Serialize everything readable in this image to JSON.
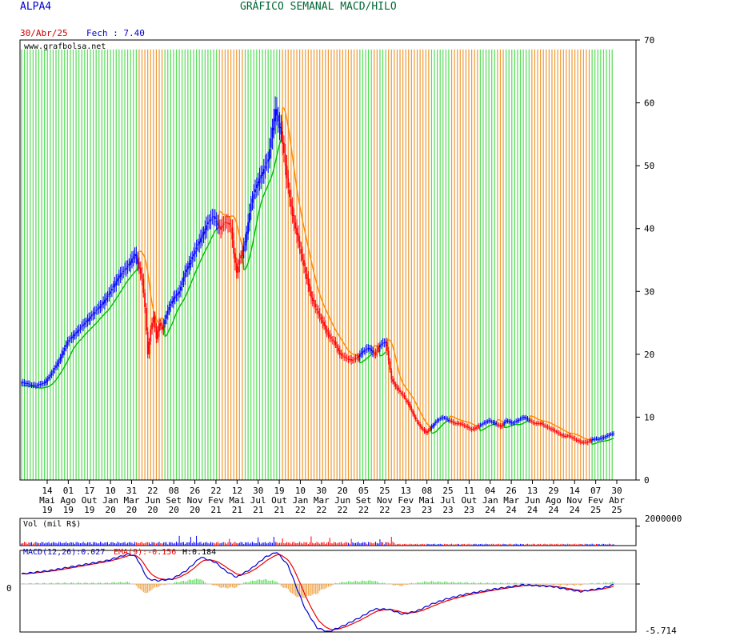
{
  "header": {
    "ticker": "ALPA4",
    "title": "GRÁFICO SEMANAL MACD/HILO",
    "date": "30/Abr/25",
    "close_label": "Fech : 7.40"
  },
  "colors": {
    "up": "#0000ff",
    "down": "#ff0000",
    "hilo_buy": "#00bb00",
    "hilo_sell": "#ff8800",
    "band_green": "#55dd55",
    "band_orange": "#ee9933",
    "macd": "#0000cc",
    "signal": "#ee0000"
  },
  "chart_data": [
    {
      "type": "candlestick",
      "panel": "price",
      "watermark": "www.grafbolsa.net",
      "ylim": [
        0,
        70
      ],
      "yticks": [
        "0",
        "10",
        "20",
        "30",
        "40",
        "50",
        "60",
        "70"
      ],
      "xticks": [
        {
          "day": "14",
          "month": "Mai",
          "year": "19"
        },
        {
          "day": "01",
          "month": "Ago",
          "year": "19"
        },
        {
          "day": "17",
          "month": "Out",
          "year": "19"
        },
        {
          "day": "10",
          "month": "Jan",
          "year": "20"
        },
        {
          "day": "31",
          "month": "Mar",
          "year": "20"
        },
        {
          "day": "22",
          "month": "Jun",
          "year": "20"
        },
        {
          "day": "08",
          "month": "Set",
          "year": "20"
        },
        {
          "day": "26",
          "month": "Nov",
          "year": "20"
        },
        {
          "day": "22",
          "month": "Fev",
          "year": "21"
        },
        {
          "day": "12",
          "month": "Mai",
          "year": "21"
        },
        {
          "day": "30",
          "month": "Jul",
          "year": "21"
        },
        {
          "day": "19",
          "month": "Out",
          "year": "21"
        },
        {
          "day": "10",
          "month": "Jan",
          "year": "22"
        },
        {
          "day": "30",
          "month": "Mar",
          "year": "22"
        },
        {
          "day": "20",
          "month": "Jun",
          "year": "22"
        },
        {
          "day": "05",
          "month": "Set",
          "year": "22"
        },
        {
          "day": "25",
          "month": "Nov",
          "year": "22"
        },
        {
          "day": "13",
          "month": "Fev",
          "year": "23"
        },
        {
          "day": "08",
          "month": "Mai",
          "year": "23"
        },
        {
          "day": "25",
          "month": "Jul",
          "year": "23"
        },
        {
          "day": "11",
          "month": "Out",
          "year": "23"
        },
        {
          "day": "04",
          "month": "Jan",
          "year": "24"
        },
        {
          "day": "26",
          "month": "Mar",
          "year": "24"
        },
        {
          "day": "13",
          "month": "Jun",
          "year": "24"
        },
        {
          "day": "29",
          "month": "Ago",
          "year": "24"
        },
        {
          "day": "14",
          "month": "Nov",
          "year": "24"
        },
        {
          "day": "07",
          "month": "Fev",
          "year": "25"
        },
        {
          "day": "30",
          "month": "Abr",
          "year": "25"
        }
      ],
      "close_path": [
        [
          0,
          15.5
        ],
        [
          10,
          15.0
        ],
        [
          16,
          15.5
        ],
        [
          21,
          17.0
        ],
        [
          26,
          19.0
        ],
        [
          32,
          22.0
        ],
        [
          38,
          23.5
        ],
        [
          44,
          25.0
        ],
        [
          50,
          26.5
        ],
        [
          56,
          28.0
        ],
        [
          62,
          30.0
        ],
        [
          68,
          32.5
        ],
        [
          74,
          34.0
        ],
        [
          79,
          36.0
        ],
        [
          84,
          32.0
        ],
        [
          86,
          27.5
        ],
        [
          88,
          20.0
        ],
        [
          90,
          24.0
        ],
        [
          92,
          26.0
        ],
        [
          94,
          22.5
        ],
        [
          96,
          25.0
        ],
        [
          98,
          24.0
        ],
        [
          102,
          27.0
        ],
        [
          106,
          29.0
        ],
        [
          110,
          30.0
        ],
        [
          114,
          33.0
        ],
        [
          118,
          35.0
        ],
        [
          122,
          37.0
        ],
        [
          126,
          39.0
        ],
        [
          130,
          41.0
        ],
        [
          134,
          42.0
        ],
        [
          138,
          40.0
        ],
        [
          142,
          41.0
        ],
        [
          146,
          40.5
        ],
        [
          148,
          36.0
        ],
        [
          150,
          33.0
        ],
        [
          152,
          35.0
        ],
        [
          156,
          38.0
        ],
        [
          160,
          44.0
        ],
        [
          164,
          47.0
        ],
        [
          168,
          49.0
        ],
        [
          172,
          51.0
        ],
        [
          175,
          56.0
        ],
        [
          177,
          59.0
        ],
        [
          179,
          57.0
        ],
        [
          181,
          55.0
        ],
        [
          183,
          52.0
        ],
        [
          185,
          48.0
        ],
        [
          187,
          45.0
        ],
        [
          189,
          42.0
        ],
        [
          191,
          40.0
        ],
        [
          193,
          38.0
        ],
        [
          196,
          35.0
        ],
        [
          199,
          32.0
        ],
        [
          202,
          29.0
        ],
        [
          206,
          27.0
        ],
        [
          210,
          25.0
        ],
        [
          214,
          23.0
        ],
        [
          218,
          22.0
        ],
        [
          222,
          20.0
        ],
        [
          226,
          19.5
        ],
        [
          230,
          19.0
        ],
        [
          234,
          19.5
        ],
        [
          238,
          20.5
        ],
        [
          242,
          21.0
        ],
        [
          246,
          20.0
        ],
        [
          250,
          21.5
        ],
        [
          254,
          22.0
        ],
        [
          256,
          19.0
        ],
        [
          258,
          16.0
        ],
        [
          262,
          14.5
        ],
        [
          266,
          13.5
        ],
        [
          270,
          12.0
        ],
        [
          274,
          10.0
        ],
        [
          278,
          8.5
        ],
        [
          282,
          7.5
        ],
        [
          286,
          8.5
        ],
        [
          290,
          9.5
        ],
        [
          294,
          10.0
        ],
        [
          298,
          9.5
        ],
        [
          302,
          9.0
        ],
        [
          306,
          9.0
        ],
        [
          310,
          8.5
        ],
        [
          314,
          8.0
        ],
        [
          318,
          8.5
        ],
        [
          322,
          9.0
        ],
        [
          326,
          9.5
        ],
        [
          330,
          9.0
        ],
        [
          334,
          8.5
        ],
        [
          338,
          9.5
        ],
        [
          342,
          9.0
        ],
        [
          346,
          9.5
        ],
        [
          350,
          10.0
        ],
        [
          354,
          9.5
        ],
        [
          358,
          9.0
        ],
        [
          362,
          9.0
        ],
        [
          366,
          8.5
        ],
        [
          370,
          8.0
        ],
        [
          374,
          7.5
        ],
        [
          378,
          7.0
        ],
        [
          382,
          7.0
        ],
        [
          386,
          6.5
        ],
        [
          390,
          6.0
        ],
        [
          394,
          6.0
        ],
        [
          398,
          6.5
        ],
        [
          402,
          6.5
        ],
        [
          406,
          6.8
        ],
        [
          410,
          7.2
        ],
        [
          413,
          7.4
        ]
      ],
      "series": [
        {
          "name": "",
          "kind": "price",
          "color": "#0000ff"
        },
        {
          "name": "",
          "kind": "hilo",
          "color": "#00bb00"
        }
      ]
    },
    {
      "type": "bar",
      "panel": "volume",
      "label": "Vol (mil R$)",
      "ylim": [
        0,
        2800000
      ],
      "yticks": [
        "2000000"
      ],
      "spikes": [
        [
          110,
          1000000
        ],
        [
          118,
          900000
        ],
        [
          122,
          1000000
        ],
        [
          145,
          700000
        ],
        [
          165,
          850000
        ],
        [
          176,
          900000
        ],
        [
          182,
          750000
        ],
        [
          202,
          950000
        ],
        [
          215,
          800000
        ],
        [
          230,
          700000
        ],
        [
          250,
          650000
        ],
        [
          258,
          900000
        ]
      ]
    },
    {
      "type": "line",
      "panel": "macd",
      "label_macd": "MACD(12,26):0.027",
      "label_ema": "EMA(9):-0.156",
      "label_hist": "H:0.184",
      "ylim": [
        -5.714,
        4.0
      ],
      "yticks": [
        "0",
        "-5.714"
      ],
      "macd_path": [
        [
          0,
          1.2
        ],
        [
          20,
          1.6
        ],
        [
          40,
          2.2
        ],
        [
          60,
          2.8
        ],
        [
          75,
          3.6
        ],
        [
          80,
          3.2
        ],
        [
          88,
          0.6
        ],
        [
          95,
          0.4
        ],
        [
          105,
          0.6
        ],
        [
          115,
          1.6
        ],
        [
          125,
          3.2
        ],
        [
          135,
          2.6
        ],
        [
          142,
          1.6
        ],
        [
          150,
          0.8
        ],
        [
          160,
          1.8
        ],
        [
          170,
          3.2
        ],
        [
          178,
          3.8
        ],
        [
          186,
          2.2
        ],
        [
          192,
          -0.5
        ],
        [
          198,
          -3.0
        ],
        [
          206,
          -5.2
        ],
        [
          214,
          -5.7
        ],
        [
          224,
          -5.0
        ],
        [
          236,
          -4.0
        ],
        [
          246,
          -3.0
        ],
        [
          256,
          -3.0
        ],
        [
          266,
          -3.6
        ],
        [
          276,
          -3.2
        ],
        [
          286,
          -2.4
        ],
        [
          296,
          -1.8
        ],
        [
          310,
          -1.2
        ],
        [
          330,
          -0.6
        ],
        [
          350,
          -0.1
        ],
        [
          370,
          -0.3
        ],
        [
          390,
          -0.9
        ],
        [
          405,
          -0.5
        ],
        [
          413,
          -0.1
        ]
      ]
    }
  ]
}
